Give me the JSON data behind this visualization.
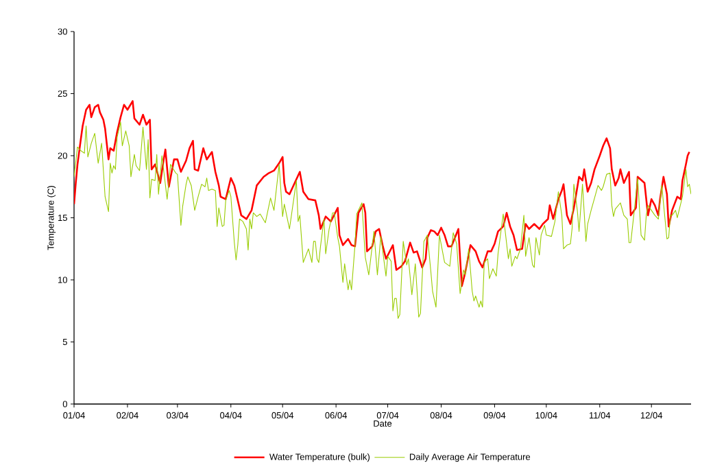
{
  "chart_data": {
    "type": "line",
    "xlabel": "Date",
    "ylabel": "Temperature (C)",
    "xlim": [
      "2004-01-01",
      "2004-12-24"
    ],
    "ylim": [
      0,
      30
    ],
    "yticks": [
      0,
      5,
      10,
      15,
      20,
      25,
      30
    ],
    "xticks": [
      {
        "value": "2004-01-01",
        "label": "01/04"
      },
      {
        "value": "2004-02-01",
        "label": "02/04"
      },
      {
        "value": "2004-03-01",
        "label": "03/04"
      },
      {
        "value": "2004-04-01",
        "label": "04/04"
      },
      {
        "value": "2004-05-01",
        "label": "05/04"
      },
      {
        "value": "2004-06-01",
        "label": "06/04"
      },
      {
        "value": "2004-07-01",
        "label": "07/04"
      },
      {
        "value": "2004-08-01",
        "label": "08/04"
      },
      {
        "value": "2004-09-01",
        "label": "09/04"
      },
      {
        "value": "2004-10-01",
        "label": "10/04"
      },
      {
        "value": "2004-11-01",
        "label": "11/04"
      },
      {
        "value": "2004-12-01",
        "label": "12/04"
      }
    ],
    "legend": "bottom",
    "grid": false,
    "series": [
      {
        "name": "Water Temperature (bulk)",
        "color": "#ff0000",
        "x": [
          "2004-01-01",
          "2004-01-02",
          "2004-01-03",
          "2004-01-05",
          "2004-01-06",
          "2004-01-08",
          "2004-01-10",
          "2004-01-11",
          "2004-01-13",
          "2004-01-15",
          "2004-01-16",
          "2004-01-18",
          "2004-01-19",
          "2004-01-21",
          "2004-01-22",
          "2004-01-24",
          "2004-01-26",
          "2004-01-28",
          "2004-01-30",
          "2004-02-01",
          "2004-02-04",
          "2004-02-05",
          "2004-02-08",
          "2004-02-10",
          "2004-02-12",
          "2004-02-14",
          "2004-02-15",
          "2004-02-17",
          "2004-02-20",
          "2004-02-22",
          "2004-02-23",
          "2004-02-25",
          "2004-02-28",
          "2004-03-01",
          "2004-03-03",
          "2004-03-06",
          "2004-03-08",
          "2004-03-10",
          "2004-03-11",
          "2004-03-13",
          "2004-03-16",
          "2004-03-18",
          "2004-03-21",
          "2004-03-23",
          "2004-03-25",
          "2004-03-26",
          "2004-03-29",
          "2004-04-01",
          "2004-04-03",
          "2004-04-05",
          "2004-04-07",
          "2004-04-10",
          "2004-04-13",
          "2004-04-16",
          "2004-04-20",
          "2004-04-23",
          "2004-04-26",
          "2004-04-29",
          "2004-05-01",
          "2004-05-02",
          "2004-05-03",
          "2004-05-05",
          "2004-05-07",
          "2004-05-11",
          "2004-05-13",
          "2004-05-16",
          "2004-05-20",
          "2004-05-22",
          "2004-05-23",
          "2004-05-26",
          "2004-05-29",
          "2004-06-02",
          "2004-06-03",
          "2004-06-05",
          "2004-06-08",
          "2004-06-10",
          "2004-06-12",
          "2004-06-14",
          "2004-06-17",
          "2004-06-18",
          "2004-06-19",
          "2004-06-22",
          "2004-06-24",
          "2004-06-26",
          "2004-06-28",
          "2004-06-30",
          "2004-07-04",
          "2004-07-06",
          "2004-07-09",
          "2004-07-11",
          "2004-07-14",
          "2004-07-16",
          "2004-07-18",
          "2004-07-21",
          "2004-07-23",
          "2004-07-24",
          "2004-07-26",
          "2004-07-28",
          "2004-07-30",
          "2004-08-01",
          "2004-08-03",
          "2004-08-05",
          "2004-08-07",
          "2004-08-11",
          "2004-08-12",
          "2004-08-13",
          "2004-08-15",
          "2004-08-18",
          "2004-08-21",
          "2004-08-23",
          "2004-08-25",
          "2004-08-28",
          "2004-08-30",
          "2004-09-01",
          "2004-09-03",
          "2004-09-06",
          "2004-09-08",
          "2004-09-10",
          "2004-09-12",
          "2004-09-14",
          "2004-09-17",
          "2004-09-19",
          "2004-09-21",
          "2004-09-24",
          "2004-09-27",
          "2004-09-29",
          "2004-10-02",
          "2004-10-03",
          "2004-10-05",
          "2004-10-08",
          "2004-10-10",
          "2004-10-11",
          "2004-10-13",
          "2004-10-15",
          "2004-10-17",
          "2004-10-20",
          "2004-10-22",
          "2004-10-23",
          "2004-10-25",
          "2004-10-27",
          "2004-10-29",
          "2004-11-01",
          "2004-11-03",
          "2004-11-05",
          "2004-11-07",
          "2004-11-08",
          "2004-11-10",
          "2004-11-12",
          "2004-11-13",
          "2004-11-15",
          "2004-11-18",
          "2004-11-19",
          "2004-11-22",
          "2004-11-23",
          "2004-11-27",
          "2004-11-29",
          "2004-12-01",
          "2004-12-03",
          "2004-12-05",
          "2004-12-06",
          "2004-12-08",
          "2004-12-10",
          "2004-12-11",
          "2004-12-13",
          "2004-12-16",
          "2004-12-18",
          "2004-12-19",
          "2004-12-21",
          "2004-12-22",
          "2004-12-23"
        ],
        "values": [
          16.1,
          17.8,
          19.3,
          21.4,
          22.4,
          23.7,
          24.1,
          23.1,
          23.9,
          24.1,
          23.5,
          22.9,
          22.2,
          19.7,
          20.6,
          20.4,
          21.9,
          23.1,
          24.1,
          23.7,
          24.4,
          23.0,
          22.5,
          23.3,
          22.5,
          22.9,
          18.9,
          19.3,
          17.8,
          19.7,
          20.5,
          17.5,
          19.7,
          19.7,
          18.7,
          19.6,
          20.6,
          21.2,
          18.9,
          18.8,
          20.6,
          19.7,
          20.3,
          18.7,
          17.6,
          16.7,
          16.5,
          18.2,
          17.6,
          16.4,
          15.2,
          14.9,
          15.6,
          17.6,
          18.3,
          18.6,
          18.8,
          19.4,
          19.9,
          17.8,
          17.1,
          16.9,
          17.5,
          18.7,
          17.1,
          16.5,
          16.4,
          15.2,
          14.1,
          15.1,
          14.7,
          15.8,
          13.6,
          12.8,
          13.3,
          12.8,
          12.7,
          15.4,
          16.1,
          15.4,
          12.3,
          12.7,
          13.9,
          14.1,
          12.8,
          11.7,
          12.8,
          10.8,
          11.1,
          11.5,
          13.0,
          12.2,
          12.3,
          11.0,
          11.7,
          13.4,
          14.0,
          13.9,
          13.6,
          14.2,
          13.6,
          12.7,
          12.7,
          14.1,
          11.7,
          9.5,
          10.6,
          12.8,
          12.3,
          11.5,
          11.0,
          12.3,
          12.3,
          12.9,
          13.9,
          14.3,
          15.4,
          14.3,
          13.6,
          12.4,
          12.5,
          14.5,
          14.1,
          14.5,
          14.1,
          14.5,
          14.9,
          16.0,
          14.9,
          16.5,
          17.2,
          17.7,
          15.2,
          14.5,
          15.8,
          18.3,
          18.0,
          18.9,
          17.1,
          17.8,
          18.9,
          20.0,
          20.8,
          21.4,
          20.6,
          18.9,
          17.6,
          18.2,
          18.9,
          17.8,
          18.7,
          15.2,
          15.8,
          18.3,
          17.8,
          15.2,
          16.5,
          16.0,
          15.2,
          16.5,
          18.3,
          16.9,
          14.3,
          15.6,
          16.7,
          16.5,
          18.0,
          19.3,
          20.0,
          20.3
        ]
      },
      {
        "name": "Daily Average Air Temperature",
        "color": "#99cc00",
        "x": [
          "2004-01-01",
          "2004-01-03",
          "2004-01-05",
          "2004-01-07",
          "2004-01-08",
          "2004-01-09",
          "2004-01-11",
          "2004-01-13",
          "2004-01-15",
          "2004-01-17",
          "2004-01-19",
          "2004-01-21",
          "2004-01-22",
          "2004-01-23",
          "2004-01-24",
          "2004-01-25",
          "2004-01-26",
          "2004-01-28",
          "2004-01-29",
          "2004-01-31",
          "2004-02-02",
          "2004-02-03",
          "2004-02-05",
          "2004-02-06",
          "2004-02-08",
          "2004-02-10",
          "2004-02-12",
          "2004-02-13",
          "2004-02-14",
          "2004-02-15",
          "2004-02-17",
          "2004-02-18",
          "2004-02-19",
          "2004-02-21",
          "2004-02-24",
          "2004-02-26",
          "2004-02-29",
          "2004-03-01",
          "2004-03-03",
          "2004-03-04",
          "2004-03-06",
          "2004-03-07",
          "2004-03-09",
          "2004-03-11",
          "2004-03-13",
          "2004-03-15",
          "2004-03-17",
          "2004-03-18",
          "2004-03-19",
          "2004-03-21",
          "2004-03-23",
          "2004-03-24",
          "2004-03-25",
          "2004-03-27",
          "2004-03-28",
          "2004-03-29",
          "2004-03-31",
          "2004-04-01",
          "2004-04-03",
          "2004-04-04",
          "2004-04-05",
          "2004-04-06",
          "2004-04-08",
          "2004-04-10",
          "2004-04-11",
          "2004-04-12",
          "2004-04-13",
          "2004-04-14",
          "2004-04-16",
          "2004-04-18",
          "2004-04-21",
          "2004-04-24",
          "2004-04-26",
          "2004-04-29",
          "2004-05-01",
          "2004-05-02",
          "2004-05-05",
          "2004-05-09",
          "2004-05-10",
          "2004-05-11",
          "2004-05-13",
          "2004-05-16",
          "2004-05-18",
          "2004-05-19",
          "2004-05-20",
          "2004-05-21",
          "2004-05-22",
          "2004-05-23",
          "2004-05-25",
          "2004-05-26",
          "2004-05-28",
          "2004-05-30",
          "2004-05-31",
          "2004-06-02",
          "2004-06-03",
          "2004-06-05",
          "2004-06-06",
          "2004-06-08",
          "2004-06-09",
          "2004-06-10",
          "2004-06-12",
          "2004-06-13",
          "2004-06-16",
          "2004-06-18",
          "2004-06-20",
          "2004-06-23",
          "2004-06-25",
          "2004-06-27",
          "2004-06-30",
          "2004-07-01",
          "2004-07-03",
          "2004-07-04",
          "2004-07-05",
          "2004-07-06",
          "2004-07-07",
          "2004-07-08",
          "2004-07-10",
          "2004-07-12",
          "2004-07-13",
          "2004-07-15",
          "2004-07-17",
          "2004-07-19",
          "2004-07-20",
          "2004-07-22",
          "2004-07-24",
          "2004-07-26",
          "2004-07-27",
          "2004-07-29",
          "2004-07-31",
          "2004-08-03",
          "2004-08-06",
          "2004-08-08",
          "2004-08-10",
          "2004-08-12",
          "2004-08-14",
          "2004-08-15",
          "2004-08-17",
          "2004-08-19",
          "2004-08-20",
          "2004-08-21",
          "2004-08-23",
          "2004-08-24",
          "2004-08-25",
          "2004-08-26",
          "2004-08-28",
          "2004-08-29",
          "2004-08-31",
          "2004-09-02",
          "2004-09-03",
          "2004-09-06",
          "2004-09-09",
          "2004-09-10",
          "2004-09-11",
          "2004-09-13",
          "2004-09-14",
          "2004-09-16",
          "2004-09-18",
          "2004-09-19",
          "2004-09-21",
          "2004-09-23",
          "2004-09-24",
          "2004-09-25",
          "2004-09-27",
          "2004-09-28",
          "2004-09-30",
          "2004-10-01",
          "2004-10-04",
          "2004-10-06",
          "2004-10-08",
          "2004-10-10",
          "2004-10-11",
          "2004-10-13",
          "2004-10-15",
          "2004-10-16",
          "2004-10-17",
          "2004-10-19",
          "2004-10-20",
          "2004-10-22",
          "2004-10-24",
          "2004-10-25",
          "2004-10-27",
          "2004-10-29",
          "2004-10-31",
          "2004-11-02",
          "2004-11-03",
          "2004-11-05",
          "2004-11-07",
          "2004-11-08",
          "2004-11-09",
          "2004-11-10",
          "2004-11-13",
          "2004-11-15",
          "2004-11-17",
          "2004-11-18",
          "2004-11-19",
          "2004-11-21",
          "2004-11-23",
          "2004-11-25",
          "2004-11-27",
          "2004-11-28",
          "2004-11-29",
          "2004-12-03",
          "2004-12-05",
          "2004-12-07",
          "2004-12-10",
          "2004-12-11",
          "2004-12-12",
          "2004-12-13",
          "2004-12-15",
          "2004-12-16",
          "2004-12-19",
          "2004-12-21",
          "2004-12-22",
          "2004-12-23",
          "2004-12-24"
        ],
        "values": [
          18.3,
          20.7,
          20.4,
          20.2,
          22.4,
          19.9,
          21.0,
          21.8,
          19.4,
          21.0,
          16.7,
          15.5,
          19.4,
          18.6,
          19.2,
          18.9,
          21.5,
          22.7,
          20.8,
          22.0,
          20.8,
          18.3,
          20.1,
          19.2,
          18.8,
          22.3,
          18.9,
          21.3,
          16.6,
          18.1,
          18.0,
          20.1,
          16.9,
          20.0,
          16.5,
          19.3,
          18.6,
          18.5,
          14.4,
          15.9,
          17.7,
          18.3,
          17.6,
          15.6,
          16.7,
          17.7,
          17.5,
          18.2,
          17.2,
          17.3,
          17.2,
          14.3,
          15.8,
          14.3,
          14.4,
          16.4,
          17.2,
          16.7,
          13.0,
          11.6,
          12.8,
          14.9,
          14.7,
          14.1,
          12.4,
          14.9,
          14.1,
          15.4,
          15.1,
          15.3,
          14.6,
          16.6,
          15.6,
          19.3,
          15.1,
          16.1,
          14.1,
          18.0,
          14.7,
          15.2,
          11.4,
          12.5,
          11.4,
          13.1,
          13.1,
          11.7,
          11.4,
          12.7,
          14.9,
          12.1,
          14.1,
          15.4,
          15.4,
          13.4,
          12.7,
          9.8,
          11.3,
          9.2,
          10.0,
          9.2,
          12.8,
          15.3,
          16.2,
          11.8,
          10.4,
          13.9,
          10.4,
          13.5,
          10.3,
          11.9,
          11.5,
          7.5,
          8.5,
          8.5,
          6.9,
          7.2,
          13.1,
          11.2,
          11.7,
          8.8,
          11.3,
          7.0,
          7.3,
          13.1,
          13.6,
          10.7,
          9.1,
          7.8,
          13.6,
          11.4,
          11.1,
          13.8,
          12.9,
          8.9,
          10.8,
          10.4,
          12.5,
          9.1,
          8.3,
          8.7,
          7.8,
          8.3,
          7.8,
          11.4,
          11.7,
          10.1,
          10.9,
          10.3,
          12.1,
          15.3,
          11.7,
          12.5,
          11.1,
          11.9,
          11.7,
          12.5,
          15.2,
          11.9,
          13.4,
          11.2,
          11.0,
          13.4,
          12.0,
          13.6,
          14.4,
          13.6,
          13.5,
          14.7,
          17.1,
          15.2,
          12.5,
          12.8,
          12.9,
          14.2,
          17.7,
          15.6,
          13.9,
          17.7,
          13.1,
          14.5,
          15.6,
          16.6,
          17.6,
          17.2,
          17.5,
          18.5,
          18.6,
          16.0,
          15.1,
          15.7,
          16.2,
          15.2,
          14.9,
          13.0,
          13.0,
          15.5,
          18.2,
          13.6,
          13.2,
          15.2,
          16.0,
          15.2,
          14.9,
          17.6,
          13.3,
          13.4,
          15.2,
          15.2,
          15.6,
          15.0,
          16.7,
          18.9,
          17.5,
          17.7,
          16.9
        ]
      }
    ]
  }
}
